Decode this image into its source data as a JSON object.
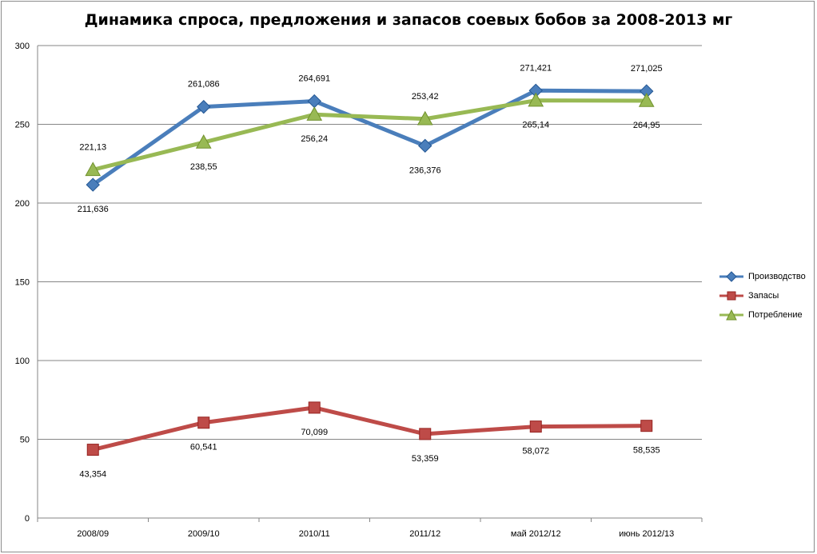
{
  "chart_data": {
    "type": "line",
    "title": "Динамика спроса, предложения и запасов соевых бобов за 2008-2013 мг",
    "categories": [
      "2008/09",
      "2009/10",
      "2010/11",
      "2011/12",
      "май 2012/12",
      "июнь 2012/13"
    ],
    "ylim": [
      0,
      300
    ],
    "yticks": [
      0,
      50,
      100,
      150,
      200,
      250,
      300
    ],
    "grid": true,
    "legend_position": "right",
    "series": [
      {
        "name": "Производство",
        "color": "#4a7ebb",
        "marker": "diamond",
        "values": [
          211.636,
          261.086,
          264.691,
          236.376,
          271.421,
          271.025
        ],
        "labels": [
          "211,636",
          "261,086",
          "264,691",
          "236,376",
          "271,421",
          "271,025"
        ]
      },
      {
        "name": "Запасы",
        "color": "#be4b48",
        "marker": "square",
        "values": [
          43.354,
          60.541,
          70.099,
          53.359,
          58.072,
          58.535
        ],
        "labels": [
          "43,354",
          "60,541",
          "70,099",
          "53,359",
          "58,072",
          "58,535"
        ]
      },
      {
        "name": "Потребление",
        "color": "#98b954",
        "marker": "triangle",
        "values": [
          221.13,
          238.55,
          256.24,
          253.42,
          265.14,
          264.95
        ],
        "labels": [
          "221,13",
          "238,55",
          "256,24",
          "253,42",
          "265,14",
          "264,95"
        ]
      }
    ]
  }
}
